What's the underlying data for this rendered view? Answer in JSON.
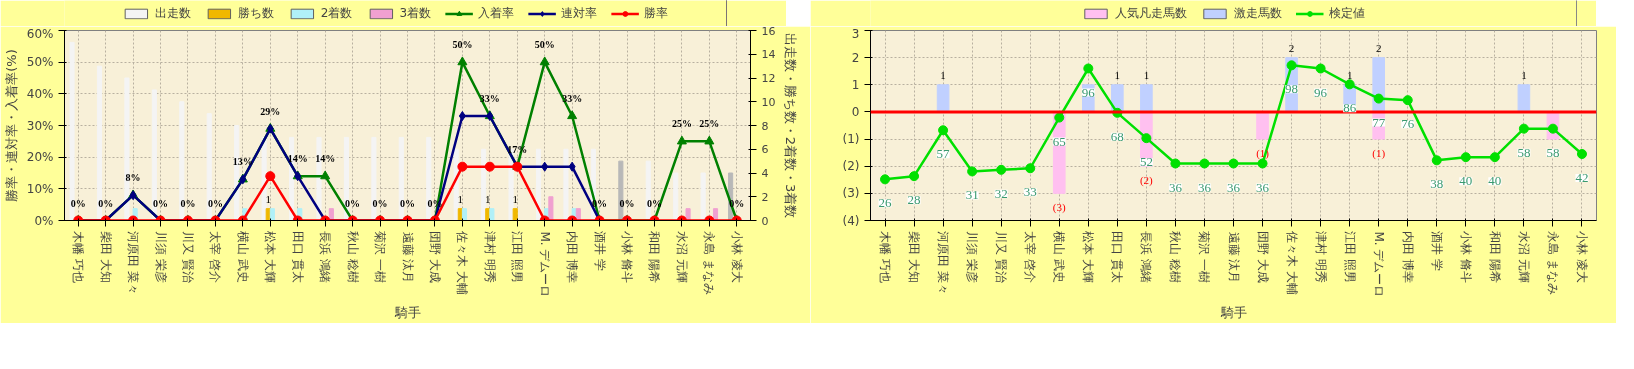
{
  "chart_data": [
    {
      "type": "bar",
      "xlabel": "騎手",
      "ylabel": "勝率・連対率・入着率(%)",
      "y2label": "出走数・勝ち数・2着数・3着数",
      "categories": [
        "木幡 巧也",
        "柴田 大知",
        "河原田 菜々",
        "川須 栄彦",
        "川又 賢治",
        "太宰 啓介",
        "横山 武史",
        "松本 大輝",
        "田口 貫太",
        "長浜 鴻緒",
        "秋山 稔樹",
        "菊沢 一樹",
        "遠藤 汰月",
        "団野 大成",
        "佐々木 大輔",
        "津村 明秀",
        "江田 照男",
        "M. デムーロ",
        "内田 博幸",
        "酒井 学",
        "小林 脩斗",
        "和田 陽希",
        "水沼 元輝",
        "永島 まなみ",
        "小林 凌大"
      ],
      "series": [
        {
          "name": "出走数",
          "axis": "y2",
          "color": "#f4f4f4",
          "colors": [
            "#f4f4f4",
            "#f4f4f4",
            "#f4f4f4",
            "#f4f4f4",
            "#f4f4f4",
            "#f4f4f4",
            "#f4f4f4",
            "#f4f4f4",
            "#f4f4f4",
            "#f4f4f4",
            "#f4f4f4",
            "#f4f4f4",
            "#f4f4f4",
            "#f4f4f4",
            "#f4f4f4",
            "#f4f4f4",
            "#f4f4f4",
            "#f4f4f4",
            "#f4f4f4",
            "#f4f4f4",
            "#b8b8b8",
            "#f4f4f4",
            "#f4f4f4",
            "#f4f4f4",
            "#b8b8b8"
          ],
          "values": [
            15,
            13,
            12,
            11,
            10,
            9,
            8,
            7,
            7,
            7,
            7,
            7,
            7,
            7,
            6,
            6,
            6,
            6,
            6,
            6,
            5,
            5,
            4,
            4,
            4
          ]
        },
        {
          "name": "勝ち数",
          "axis": "y2",
          "color": "#f0b800",
          "values": [
            0,
            0,
            0,
            0,
            0,
            0,
            0,
            1,
            0,
            0,
            0,
            0,
            0,
            0,
            1,
            1,
            1,
            0,
            0,
            0,
            0,
            0,
            0,
            0,
            0
          ],
          "value_labels": [
            null,
            null,
            null,
            null,
            null,
            null,
            null,
            "1",
            null,
            null,
            null,
            null,
            null,
            null,
            "1",
            "1",
            "1",
            null,
            null,
            null,
            null,
            null,
            null,
            null,
            null
          ]
        },
        {
          "name": "2着数",
          "axis": "y2",
          "color": "#b0f0f8",
          "values": [
            0,
            0,
            1,
            0,
            0,
            0,
            1,
            1,
            1,
            0,
            0,
            0,
            0,
            0,
            1,
            1,
            0,
            1,
            1,
            0,
            0,
            0,
            0,
            0,
            0
          ]
        },
        {
          "name": "3着数",
          "axis": "y2",
          "color": "#f0a0d0",
          "values": [
            0,
            0,
            0,
            0,
            0,
            0,
            0,
            0,
            0,
            1,
            0,
            0,
            0,
            0,
            0,
            0,
            0,
            2,
            1,
            0,
            0,
            0,
            1,
            1,
            0
          ]
        },
        {
          "name": "入着率",
          "type": "line",
          "marker": "triangle",
          "color": "#008000",
          "values": [
            0,
            0,
            8,
            0,
            0,
            0,
            13,
            29,
            14,
            14,
            0,
            0,
            0,
            0,
            50,
            33,
            17,
            50,
            33,
            0,
            0,
            0,
            25,
            25,
            0
          ],
          "value_labels": [
            "0%",
            "0%",
            "8%",
            "0%",
            "0%",
            "0%",
            "13%",
            "29%",
            "14%",
            "14%",
            "0%",
            "0%",
            "0%",
            "0%",
            "50%",
            "33%",
            "17%",
            "50%",
            "33%",
            "0%",
            "0%",
            "0%",
            "25%",
            "25%",
            "0%"
          ]
        },
        {
          "name": "連対率",
          "type": "line",
          "marker": "diamond",
          "color": "#000080",
          "values": [
            0,
            0,
            8,
            0,
            0,
            0,
            13,
            29,
            14,
            0,
            0,
            0,
            0,
            0,
            33,
            33,
            17,
            17,
            17,
            0,
            null,
            null,
            null,
            null,
            null
          ]
        },
        {
          "name": "勝率",
          "type": "line",
          "marker": "circle",
          "color": "#ff0000",
          "values": [
            0,
            0,
            0,
            0,
            0,
            0,
            0,
            14,
            0,
            0,
            0,
            0,
            0,
            0,
            17,
            17,
            17,
            0,
            0,
            0,
            0,
            0,
            0,
            0,
            0
          ]
        }
      ],
      "ylim": [
        0,
        60
      ],
      "yticks": [
        {
          "value": 0,
          "label": "0%"
        },
        {
          "value": 10,
          "label": "10%"
        },
        {
          "value": 20,
          "label": "20%"
        },
        {
          "value": 30,
          "label": "30%"
        },
        {
          "value": 40,
          "label": "40%"
        },
        {
          "value": 50,
          "label": "50%"
        },
        {
          "value": 60,
          "label": "60%"
        }
      ],
      "y2lim": [
        0,
        16
      ],
      "y2ticks": [
        0,
        2,
        4,
        6,
        8,
        10,
        12,
        14,
        16
      ],
      "grid": true,
      "legend": "top"
    },
    {
      "type": "bar",
      "xlabel": "騎手",
      "stacked": true,
      "categories": [
        "木幡 巧也",
        "柴田 大知",
        "河原田 菜々",
        "川須 栄彦",
        "川又 賢治",
        "太宰 啓介",
        "横山 武史",
        "松本 大輝",
        "田口 貫太",
        "長浜 鴻緒",
        "秋山 稔樹",
        "菊沢 一樹",
        "遠藤 汰月",
        "団野 大成",
        "佐々木 大輔",
        "津村 明秀",
        "江田 照男",
        "M. デムーロ",
        "内田 博幸",
        "酒井 学",
        "小林 脩斗",
        "和田 陽希",
        "水沼 元輝",
        "永島 まなみ",
        "小林 凌大"
      ],
      "series": [
        {
          "name": "人気凡走馬数",
          "color": "#ffc0f0",
          "values": [
            0,
            0,
            0,
            0,
            0,
            0,
            -3,
            0,
            0,
            -2,
            0,
            0,
            0,
            -1,
            0,
            0,
            0,
            -1,
            0,
            0,
            0,
            0,
            0,
            -1,
            0
          ],
          "value_labels": [
            null,
            null,
            null,
            null,
            null,
            null,
            "(3)",
            null,
            null,
            "(2)",
            null,
            null,
            null,
            "(1)",
            null,
            null,
            null,
            "(1)",
            null,
            null,
            null,
            null,
            null,
            null,
            null
          ]
        },
        {
          "name": "激走馬数",
          "color": "#c0d0ff",
          "values": [
            0,
            0,
            1,
            0,
            0,
            0,
            0,
            1,
            1,
            1,
            0,
            0,
            0,
            0,
            2,
            0,
            1,
            2,
            0,
            0,
            0,
            0,
            1,
            0,
            0
          ],
          "value_labels": [
            null,
            null,
            "1",
            null,
            null,
            null,
            null,
            null,
            "1",
            "1",
            null,
            null,
            null,
            null,
            "2",
            null,
            "1",
            "2",
            null,
            null,
            null,
            null,
            "1",
            null,
            null
          ]
        },
        {
          "name": "検定値",
          "type": "line",
          "axis": "y2",
          "marker": "circle",
          "color": "#00e000",
          "values": [
            26,
            28,
            57,
            31,
            32,
            33,
            65,
            96,
            68,
            52,
            36,
            36,
            36,
            36,
            98,
            96,
            86,
            77,
            76,
            38,
            40,
            40,
            58,
            58,
            42
          ],
          "value_labels": [
            "26",
            "28",
            "57",
            "31",
            "32",
            "33",
            "65",
            "96",
            "68",
            "52",
            "36",
            "36",
            "36",
            "36",
            "98",
            "96",
            "86",
            "77",
            "76",
            "38",
            "40",
            "40",
            "58",
            "58",
            "42"
          ]
        }
      ],
      "ylim": [
        -4,
        3
      ],
      "yticks": [
        {
          "value": -4,
          "label": "(4)"
        },
        {
          "value": -3,
          "label": "(3)"
        },
        {
          "value": -2,
          "label": "(2)"
        },
        {
          "value": -1,
          "label": "(1)"
        },
        0,
        1,
        2,
        3
      ],
      "y2lim": [
        0,
        120
      ],
      "tick_labels": "xy",
      "ref_lines": [
        {
          "axis": "y",
          "value": 0,
          "color": "#ff0000"
        }
      ],
      "grid": true,
      "legend": "top"
    }
  ]
}
